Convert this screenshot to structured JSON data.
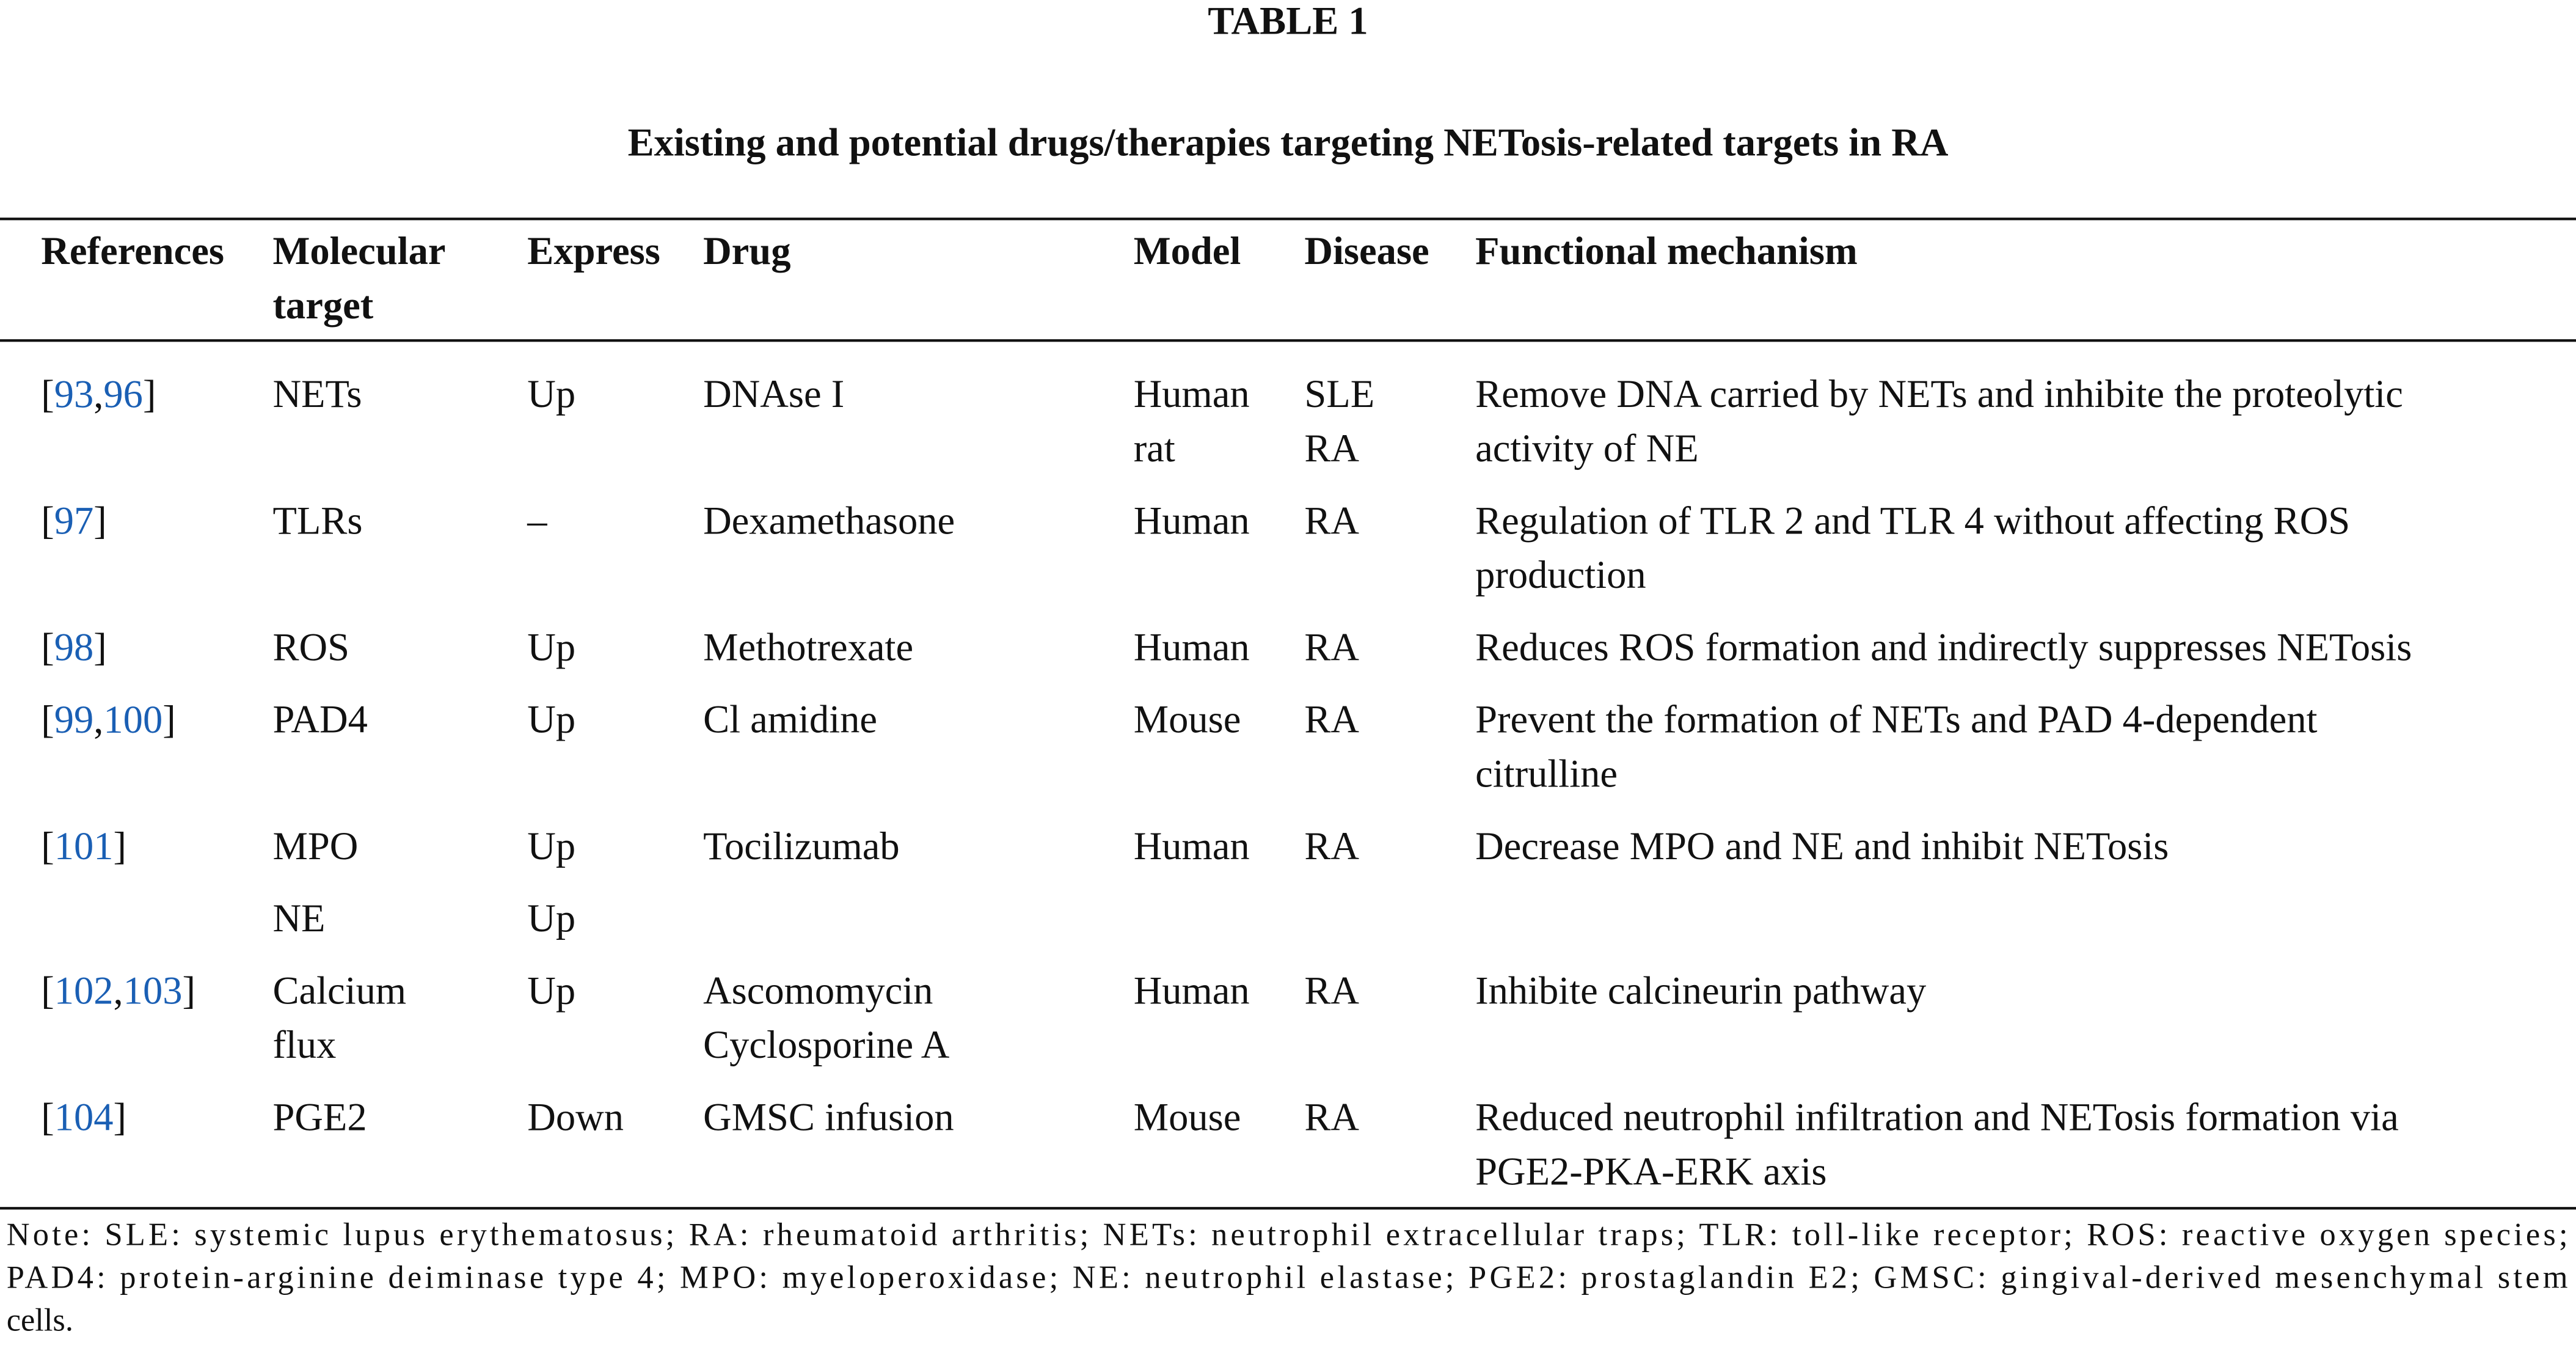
{
  "header": {
    "label": "TABLE 1",
    "title": "Existing and potential drugs/therapies targeting NETosis-related targets in RA"
  },
  "table": {
    "columns": {
      "references": [
        "References"
      ],
      "target": [
        "Molecular",
        "target"
      ],
      "express": [
        "Express"
      ],
      "drug": [
        "Drug"
      ],
      "model": [
        "Model"
      ],
      "disease": [
        "Disease"
      ],
      "mechanism": [
        "Functional mechanism"
      ]
    },
    "rows": [
      {
        "references": [
          "[",
          "93",
          ",",
          "96",
          "]"
        ],
        "target": [
          "NETs"
        ],
        "express": [
          "Up"
        ],
        "drug": [
          "DNAse I"
        ],
        "model": [
          "Human",
          "rat"
        ],
        "disease": [
          "SLE",
          "RA"
        ],
        "mechanism": [
          "Remove DNA carried by NETs and inhibite the proteolytic",
          "activity of NE"
        ]
      },
      {
        "references": [
          "[",
          "97",
          "]"
        ],
        "target": [
          "TLRs"
        ],
        "express": [
          "–"
        ],
        "drug": [
          "Dexamethasone"
        ],
        "model": [
          "Human"
        ],
        "disease": [
          "RA"
        ],
        "mechanism": [
          "Regulation of TLR 2 and TLR 4 without affecting ROS",
          "production"
        ]
      },
      {
        "references": [
          "[",
          "98",
          "]"
        ],
        "target": [
          "ROS"
        ],
        "express": [
          "Up"
        ],
        "drug": [
          "Methotrexate"
        ],
        "model": [
          "Human"
        ],
        "disease": [
          "RA"
        ],
        "mechanism": [
          "Reduces ROS formation and indirectly suppresses NETosis"
        ]
      },
      {
        "references": [
          "[",
          "99",
          ",",
          "100",
          "]"
        ],
        "target": [
          "PAD4"
        ],
        "express": [
          "Up"
        ],
        "drug": [
          "Cl amidine"
        ],
        "model": [
          "Mouse"
        ],
        "disease": [
          "RA"
        ],
        "mechanism": [
          "Prevent the formation of NETs and PAD 4-dependent",
          "citrulline"
        ]
      },
      {
        "references": [
          "[",
          "101",
          "]"
        ],
        "target": [
          "MPO"
        ],
        "express": [
          "Up"
        ],
        "drug": [
          "Tocilizumab"
        ],
        "model": [
          "Human"
        ],
        "disease": [
          "RA"
        ],
        "mechanism": [
          "Decrease MPO and NE and inhibit NETosis"
        ]
      },
      {
        "target": [
          "NE"
        ],
        "express": [
          "Up"
        ]
      },
      {
        "references": [
          "[",
          "102",
          ",",
          "103",
          "]"
        ],
        "target": [
          "Calcium",
          "flux"
        ],
        "express": [
          "Up"
        ],
        "drug": [
          "Ascomomycin",
          "Cyclosporine A"
        ],
        "model": [
          "Human"
        ],
        "disease": [
          "RA"
        ],
        "mechanism": [
          "Inhibite calcineurin pathway"
        ]
      },
      {
        "references": [
          "[",
          "104",
          "]"
        ],
        "target": [
          "PGE2"
        ],
        "express": [
          "Down"
        ],
        "drug": [
          "GMSC infusion"
        ],
        "model": [
          "Mouse"
        ],
        "disease": [
          "RA"
        ],
        "mechanism": [
          "Reduced neutrophil infiltration and NETosis formation via",
          "PGE2-PKA-ERK axis"
        ]
      }
    ]
  },
  "note": [
    "Note: SLE: systemic lupus erythematosus; RA: rheumatoid arthritis; NETs: neutrophil extracellular traps; TLR: toll-like receptor; ROS: reactive oxygen species;",
    "PAD4: protein-arginine deiminase type 4; MPO: myeloperoxidase; NE: neutrophil elastase; PGE2: prostaglandin E2; GMSC: gingival-derived mesenchymal stem",
    "cells."
  ]
}
